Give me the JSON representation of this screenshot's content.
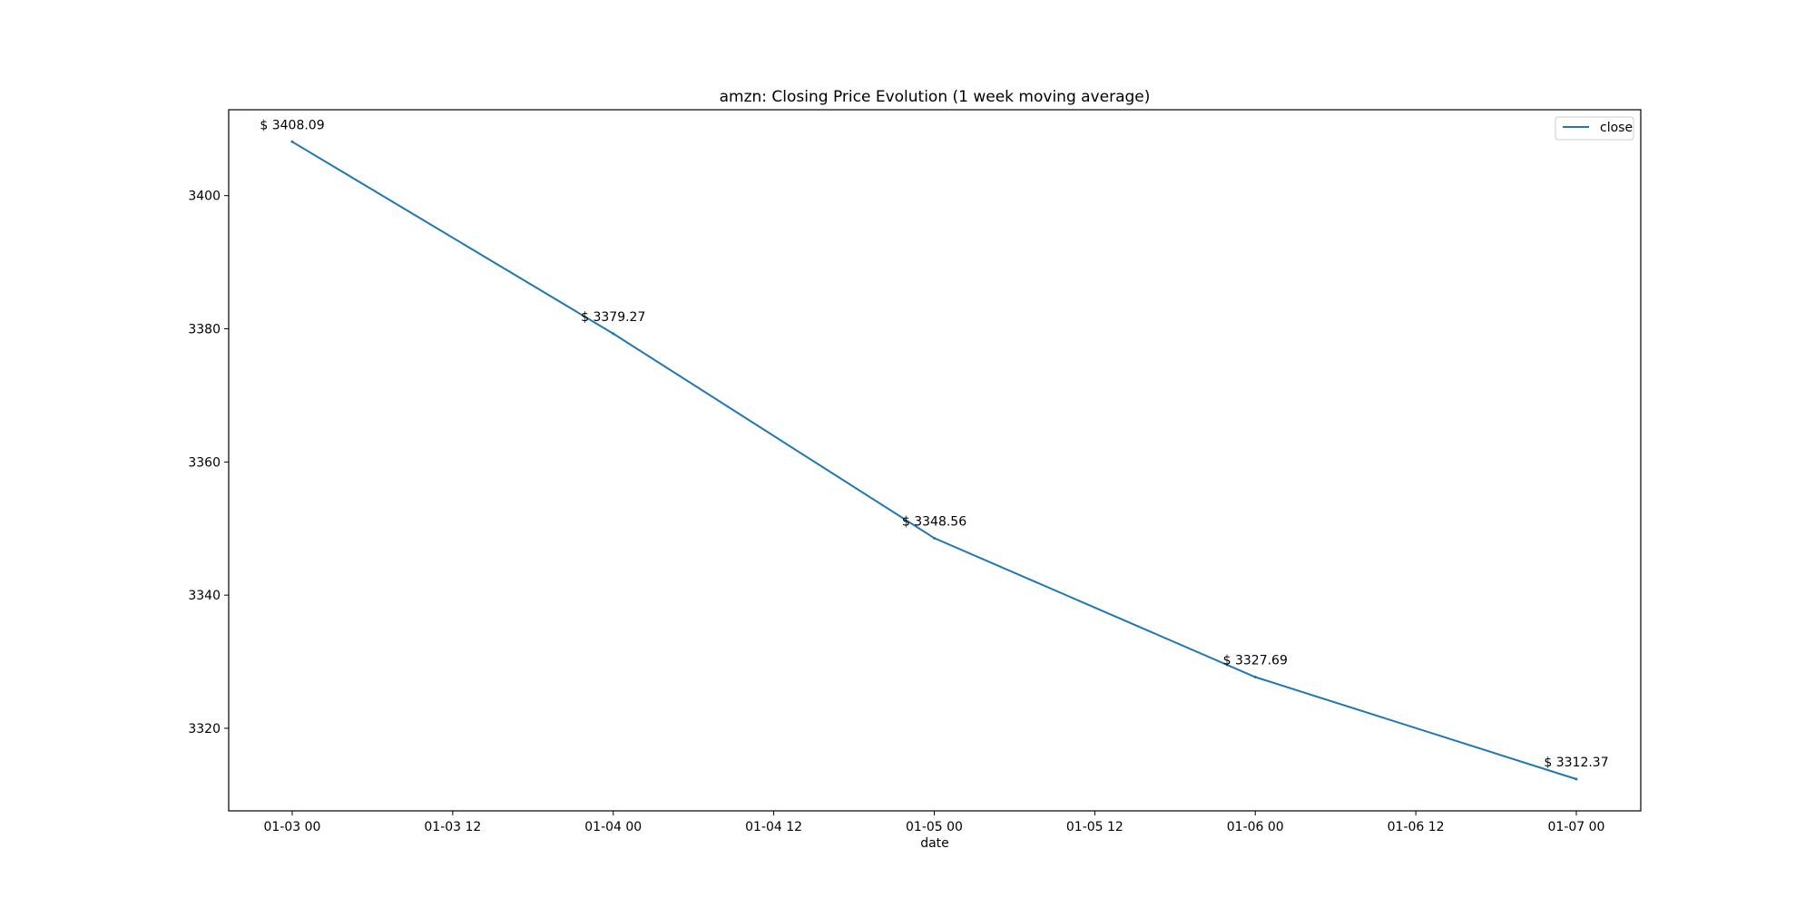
{
  "chart_data": {
    "type": "line",
    "title": "amzn: Closing Price Evolution (1 week moving average)",
    "xlabel": "date",
    "ylabel": "",
    "x_tick_labels": [
      "01-03 00",
      "01-03 12",
      "01-04 00",
      "01-04 12",
      "01-05 00",
      "01-05 12",
      "01-06 00",
      "01-06 12",
      "01-07 00"
    ],
    "x_ticks": [
      "01-03 00",
      "01-03 12",
      "01-04 00",
      "01-04 12",
      "01-05 00",
      "01-05 12",
      "01-06 00",
      "01-06 12",
      "01-07 00"
    ],
    "y_ticks": [
      3320,
      3340,
      3360,
      3380,
      3400
    ],
    "x": [
      "01-03 00",
      "01-04 00",
      "01-05 00",
      "01-06 00",
      "01-07 00"
    ],
    "series": [
      {
        "name": "close",
        "color": "#1f77b4",
        "values": [
          3408.09,
          3379.27,
          3348.56,
          3327.69,
          3312.37
        ]
      }
    ],
    "data_labels": [
      "$ 3408.09",
      "$ 3379.27",
      "$ 3348.56",
      "$ 3327.69",
      "$ 3312.37"
    ],
    "ylim": [
      3307.6,
      3412.9
    ],
    "grid": false,
    "legend": "top-right"
  }
}
